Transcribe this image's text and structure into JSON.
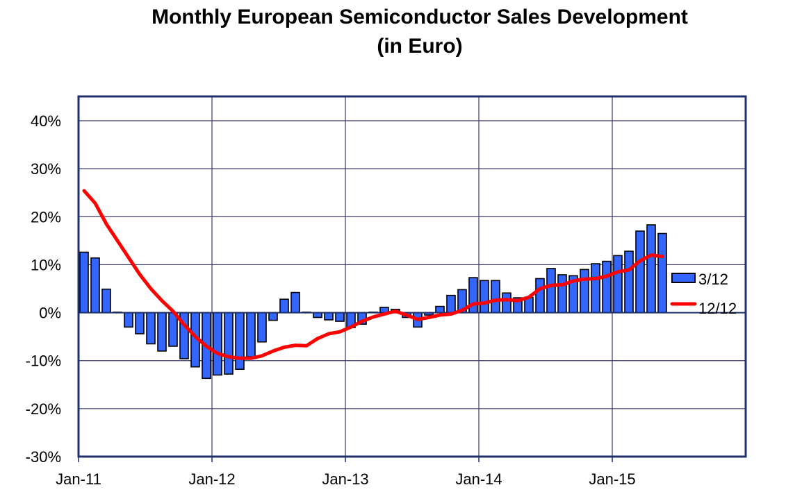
{
  "chart_data": {
    "type": "bar",
    "title": "Monthly European Semiconductor Sales Development",
    "subtitle": "(in Euro)",
    "xlabel": "",
    "ylabel": "",
    "ylim": [
      -30,
      40
    ],
    "yticks": [
      "40%",
      "30%",
      "20%",
      "10%",
      "0%",
      "-10%",
      "-20%",
      "-30%"
    ],
    "ytick_values": [
      40,
      30,
      20,
      10,
      0,
      -10,
      -20,
      -30
    ],
    "xticks": [
      "Jan-11",
      "Jan-12",
      "Jan-13",
      "Jan-14",
      "Jan-15"
    ],
    "x_range": [
      "Jan-11",
      "Jan-16"
    ],
    "x_start": "Jan-11",
    "grid": true,
    "legend_position": "right",
    "colors": {
      "bar": "#3366FF",
      "line": "#FF0000",
      "frame": "#1F2F6B",
      "grid": "#3A3A6A"
    },
    "series": [
      {
        "name": "3/12",
        "type": "bar",
        "values": [
          12.6,
          11.4,
          4.9,
          0.1,
          -3.0,
          -4.4,
          -6.5,
          -8.0,
          -7.0,
          -9.6,
          -11.3,
          -13.7,
          -13.0,
          -12.8,
          -11.8,
          -9.2,
          -6.1,
          -1.6,
          2.8,
          4.2,
          0.1,
          -1.0,
          -1.5,
          -1.8,
          -3.1,
          -2.4,
          0.1,
          1.1,
          0.7,
          -1.0,
          -3.0,
          -0.5,
          1.3,
          3.6,
          4.8,
          7.3,
          6.7,
          6.7,
          4.1,
          3.1,
          3.2,
          7.1,
          9.2,
          7.9,
          7.7,
          9.0,
          10.2,
          10.7,
          11.9,
          12.8,
          17.0,
          18.3,
          16.5
        ]
      },
      {
        "name": "12/12",
        "type": "line",
        "values": [
          25.4,
          22.8,
          18.5,
          15.0,
          11.5,
          8.0,
          5.0,
          2.5,
          0.3,
          -2.5,
          -5.0,
          -7.0,
          -8.5,
          -9.2,
          -9.5,
          -9.5,
          -9.0,
          -8.0,
          -7.2,
          -6.8,
          -6.9,
          -5.4,
          -4.4,
          -4.0,
          -3.0,
          -1.8,
          -0.9,
          -0.3,
          0.3,
          -0.5,
          -1.4,
          -1.0,
          -0.5,
          -0.3,
          0.5,
          1.8,
          2.0,
          2.6,
          2.7,
          2.5,
          3.2,
          5.0,
          5.7,
          5.8,
          6.6,
          7.0,
          7.1,
          7.6,
          8.5,
          8.9,
          10.8,
          12.0,
          11.7
        ]
      }
    ]
  }
}
